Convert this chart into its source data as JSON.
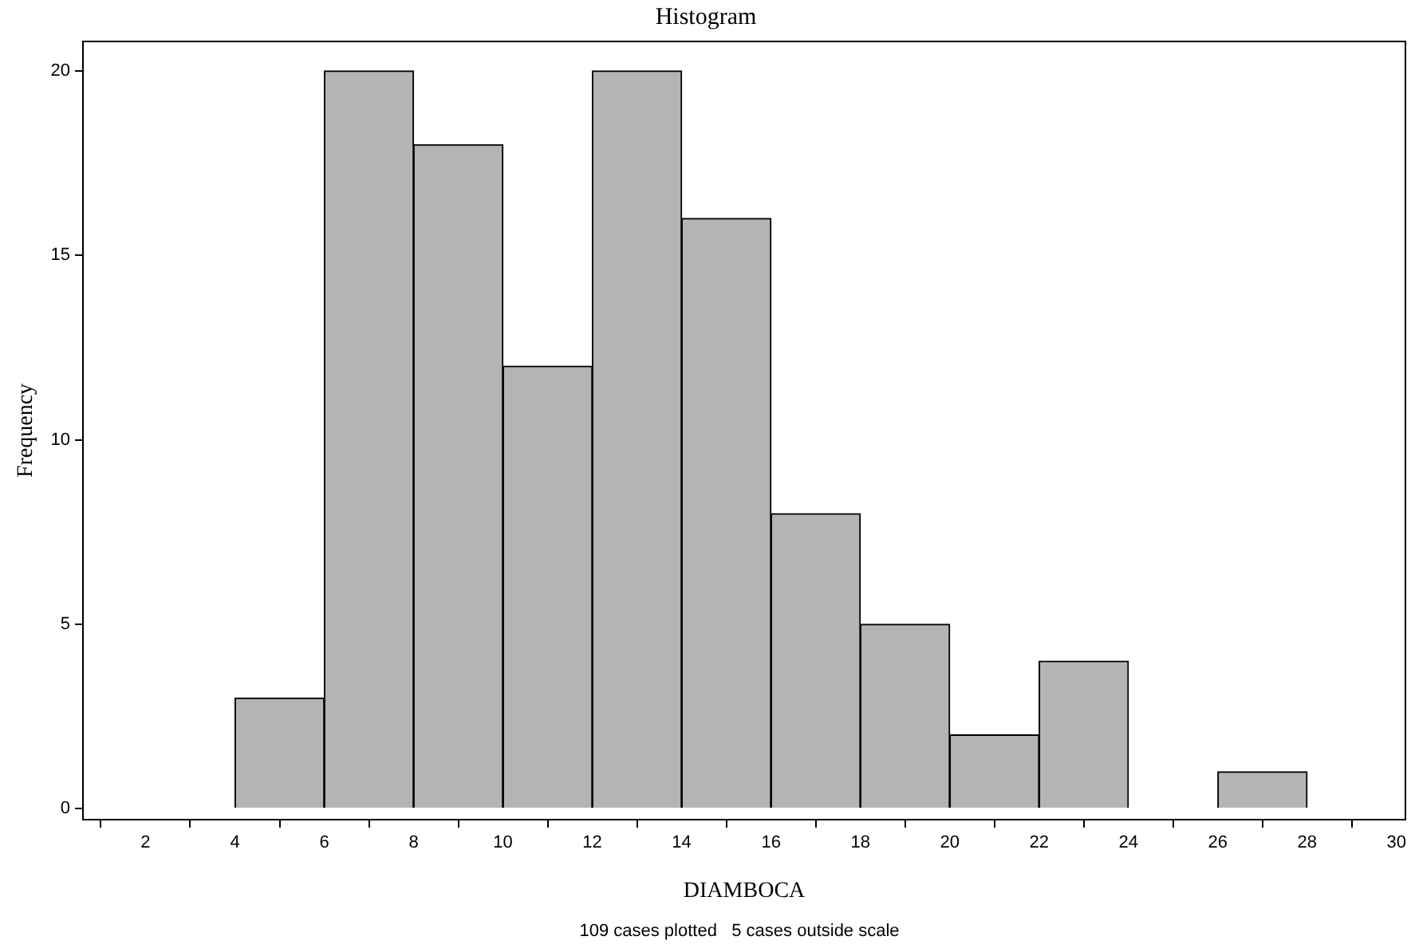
{
  "chart_data": {
    "type": "histogram",
    "title": "Histogram",
    "xlabel": "DIAMBOCA",
    "ylabel": "Frequency",
    "bins": [
      4,
      6,
      8,
      10,
      12,
      14,
      16,
      18,
      20,
      22,
      24,
      26,
      28
    ],
    "values": [
      3,
      20,
      18,
      12,
      20,
      16,
      8,
      5,
      2,
      4,
      0,
      1
    ],
    "color": "#b4b4b4",
    "xlim": [
      0.6,
      30.2
    ],
    "xticks": [
      2,
      4,
      6,
      8,
      10,
      12,
      14,
      16,
      18,
      20,
      22,
      24,
      26,
      28,
      30
    ],
    "ylim": [
      -0.3,
      20.8
    ],
    "yticks": [
      0,
      5,
      10,
      15,
      20
    ],
    "grid": false,
    "legend": false,
    "annotations": [
      "109 cases plotted   5 cases outside scale"
    ]
  }
}
